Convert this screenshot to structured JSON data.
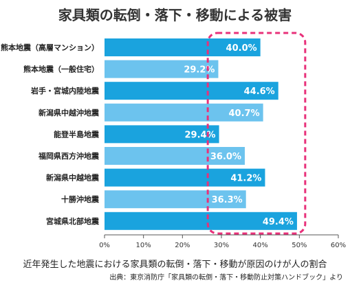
{
  "title": "家具類の転倒・落下・移動による被害",
  "caption": "近年発生した地震における家具類の転倒・落下・移動が原因のけが人の割合",
  "source": "出典：東京消防庁「家具類の転倒・落下・移動防止対策ハンドブック」より",
  "chart_data": {
    "type": "bar",
    "orientation": "horizontal",
    "title": "家具類の転倒・落下・移動による被害",
    "categories": [
      "熊本地震（高層マンション）",
      "熊本地震（一般住宅）",
      "岩手・宮城内陸地震",
      "新潟県中越沖地震",
      "能登半島地震",
      "福岡県西方沖地震",
      "新潟県中越地震",
      "十勝沖地震",
      "宮城県北部地震"
    ],
    "values": [
      40.0,
      29.2,
      44.6,
      40.7,
      29.4,
      36.0,
      41.2,
      36.3,
      49.4
    ],
    "value_labels": [
      "40.0%",
      "29.2%",
      "44.6%",
      "40.7%",
      "29.4%",
      "36.0%",
      "41.2%",
      "36.3%",
      "49.4%"
    ],
    "xlim": [
      0,
      60
    ],
    "x_ticks": [
      "0%",
      "10%",
      "20%",
      "30%",
      "40%",
      "50%",
      "60%"
    ],
    "bar_colors": [
      "#1aa3de",
      "#6cc3ee"
    ],
    "highlight_color": "#e8317a",
    "grid": false,
    "legend": "none"
  }
}
